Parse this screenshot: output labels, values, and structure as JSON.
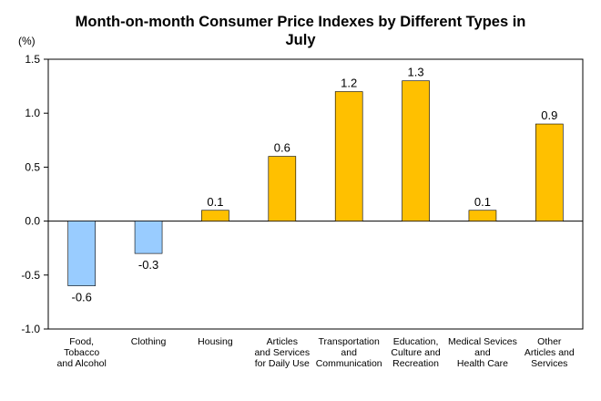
{
  "chart_data": {
    "type": "bar",
    "title_lines": [
      "Month-on-month Consumer Price Indexes by Different Types in",
      "July"
    ],
    "unit_label": "(%)",
    "xlabel": "",
    "ylabel": "",
    "ylim": [
      -1.0,
      1.5
    ],
    "yticks": [
      1.5,
      1.0,
      0.5,
      0.0,
      -0.5,
      -1.0
    ],
    "ytick_labels": [
      "1.5",
      "1.0",
      "0.5",
      "0.0",
      "-0.5",
      "-1.0"
    ],
    "categories": [
      [
        "Food,",
        "Tobacco",
        "and Alcohol"
      ],
      [
        "Clothing"
      ],
      [
        "Housing"
      ],
      [
        "Articles",
        "and Services",
        "for Daily Use"
      ],
      [
        "Transportation",
        "and",
        "Communication"
      ],
      [
        "Education,",
        "Culture and",
        "Recreation"
      ],
      [
        "Medical Sevices",
        "and",
        "Health Care"
      ],
      [
        "Other",
        "Articles and",
        "Services"
      ]
    ],
    "values": [
      -0.6,
      -0.3,
      0.1,
      0.6,
      1.2,
      1.3,
      0.1,
      0.9
    ],
    "data_labels": [
      "-0.6",
      "-0.3",
      "0.1",
      "0.6",
      "1.2",
      "1.3",
      "0.1",
      "0.9"
    ],
    "colors": {
      "positive": "#FFC000",
      "negative": "#99CCFF",
      "bar_stroke": "#000000",
      "axis": "#000000"
    },
    "grid": false,
    "legend": "none"
  }
}
